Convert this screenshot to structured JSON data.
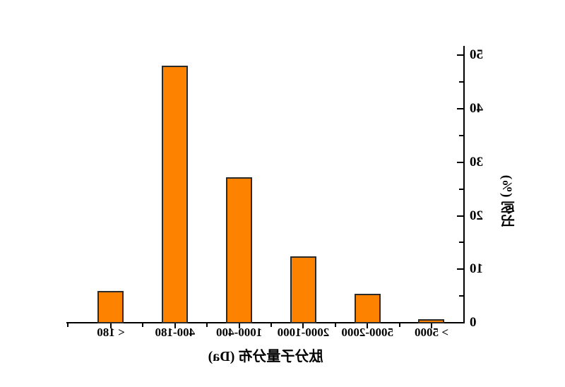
{
  "presentation": {
    "mirrored_horizontally": true,
    "background_color": "#FFFFFF",
    "text_color": "#000000"
  },
  "chart_data": {
    "type": "bar",
    "categories": [
      "> 5000",
      "5000-2000",
      "2000-1000",
      "1000-400",
      "400-180",
      "< 180"
    ],
    "values": [
      0.7,
      5.4,
      12.4,
      27.2,
      48.1,
      5.9
    ],
    "title": "",
    "xlabel": "肽分子量分布  (Da)",
    "ylabel": "比例 (%)",
    "ylim": [
      0,
      50
    ],
    "yticks": [
      0,
      10,
      20,
      30,
      40,
      50
    ],
    "ytick_labels": [
      "0",
      "10",
      "20",
      "30",
      "40",
      "50"
    ],
    "y_minor_tick_interval": 5,
    "grid": false,
    "legend": null,
    "bar_color": "#FC8200",
    "bar_border_color": "#2B2B2B",
    "axis_color": "#000000",
    "tick_direction": "in-for-y, out-for-x"
  }
}
